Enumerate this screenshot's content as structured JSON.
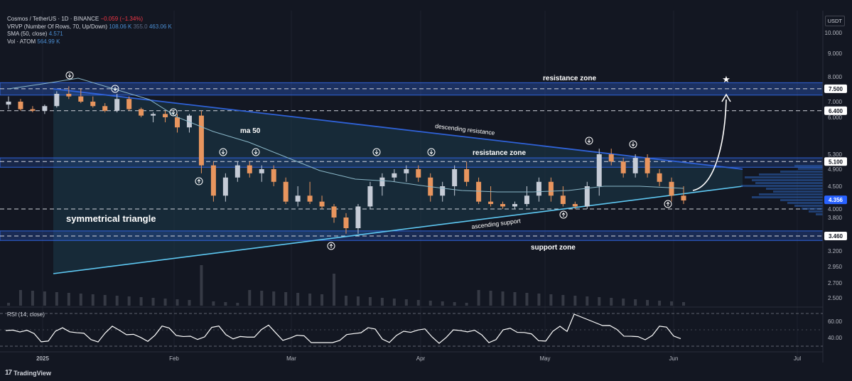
{
  "header": {
    "symbol": "Cosmos / TetherUS · 1D · BINANCE",
    "change": "−0.059 (−1.34%)",
    "vrvp": "VRVP (Number Of Rows, 70, Up/Down)",
    "vrvp_up": "108.06 K",
    "vrvp_mid": "355.0",
    "vrvp_total": "463.06 K",
    "sma": "SMA (50, close)",
    "sma_value": "4.571",
    "vol": "Vol · ATOM",
    "vol_value": "564.99 K"
  },
  "currency": "USDT",
  "rsi_label": "RSI (14, close)",
  "brand": "TradingView",
  "colors": {
    "background": "#131722",
    "up": "#c5cbd6",
    "down": "#e8955e",
    "triangle_line": "#2f62d8",
    "support_line": "#5ec8f2",
    "sma": "#8ab7c8",
    "zone": "#2f62d8"
  },
  "chart_data": {
    "type": "candlestick",
    "x_ticks": [
      "2025",
      "Feb",
      "Mar",
      "Apr",
      "May",
      "Jun",
      "Jul"
    ],
    "y_scale": "log",
    "y_ticks": [
      "10.000",
      "9.000",
      "8.000",
      "7.000",
      "6.000",
      "5.300",
      "4.900",
      "4.500",
      "4.350",
      "4.000",
      "3.800",
      "3.460",
      "3.200",
      "2.950",
      "2.700",
      "2.500"
    ],
    "price_tags": [
      {
        "label": "7.500",
        "value": 7.5
      },
      {
        "label": "6.400",
        "value": 6.4
      },
      {
        "label": "5.100",
        "value": 5.1
      },
      {
        "label": "4.356",
        "value": 4.356,
        "highlight": true
      },
      {
        "label": "3.460",
        "value": 3.46
      }
    ],
    "rsi_ticks": [
      "60.00",
      "40.00"
    ],
    "annotations": {
      "resistance_top": "resistance zone",
      "resistance_mid": "resistance zone",
      "support": "support zone",
      "ma": "ma 50",
      "descending": "descending resistance",
      "ascending": "ascending support",
      "pattern": "symmetrical triangle"
    },
    "series": [
      {
        "name": "OHLC",
        "values": [
          [
            6.8,
            7.2,
            6.5,
            7.0
          ],
          [
            7.0,
            7.1,
            6.4,
            6.5
          ],
          [
            6.5,
            6.7,
            6.3,
            6.4
          ],
          [
            6.4,
            6.8,
            6.2,
            6.7
          ],
          [
            6.7,
            7.4,
            6.6,
            7.3
          ],
          [
            7.3,
            7.6,
            7.1,
            7.2
          ],
          [
            7.2,
            7.5,
            6.9,
            7.0
          ],
          [
            7.0,
            7.2,
            6.6,
            6.7
          ],
          [
            6.7,
            6.9,
            6.3,
            6.4
          ],
          [
            6.4,
            7.3,
            6.3,
            7.1
          ],
          [
            7.1,
            7.2,
            6.4,
            6.5
          ],
          [
            6.5,
            6.6,
            6.0,
            6.1
          ],
          [
            6.1,
            6.3,
            5.9,
            6.2
          ],
          [
            6.2,
            6.4,
            5.9,
            6.0
          ],
          [
            6.0,
            6.2,
            5.7,
            5.8
          ],
          [
            5.8,
            6.2,
            5.7,
            6.1
          ],
          [
            6.1,
            6.4,
            4.8,
            5.0
          ],
          [
            5.0,
            5.1,
            4.3,
            4.4
          ],
          [
            4.4,
            4.8,
            4.3,
            4.7
          ],
          [
            4.7,
            5.1,
            4.6,
            5.0
          ],
          [
            5.0,
            5.1,
            4.7,
            4.8
          ],
          [
            4.8,
            5.0,
            4.6,
            4.9
          ],
          [
            4.9,
            5.0,
            4.5,
            4.6
          ],
          [
            4.6,
            4.7,
            4.2,
            4.3
          ],
          [
            4.3,
            4.5,
            4.1,
            4.4
          ],
          [
            4.4,
            4.6,
            4.2,
            4.3
          ],
          [
            4.3,
            4.4,
            4.0,
            4.1
          ],
          [
            4.1,
            4.2,
            3.7,
            3.8
          ],
          [
            3.8,
            3.9,
            3.5,
            3.6
          ],
          [
            3.6,
            4.2,
            3.5,
            4.1
          ],
          [
            4.1,
            4.6,
            4.0,
            4.5
          ],
          [
            4.5,
            4.8,
            4.4,
            4.7
          ],
          [
            4.7,
            4.9,
            4.6,
            4.8
          ],
          [
            4.8,
            5.0,
            4.6,
            4.9
          ],
          [
            4.9,
            5.0,
            4.6,
            4.7
          ],
          [
            4.7,
            4.8,
            4.3,
            4.4
          ],
          [
            4.4,
            4.6,
            4.3,
            4.5
          ],
          [
            4.5,
            5.0,
            4.4,
            4.9
          ],
          [
            4.9,
            5.1,
            4.5,
            4.6
          ],
          [
            4.6,
            4.7,
            4.2,
            4.3
          ],
          [
            4.3,
            4.5,
            4.1,
            4.2
          ],
          [
            4.2,
            4.3,
            4.0,
            4.1
          ],
          [
            4.1,
            4.3,
            4.0,
            4.2
          ],
          [
            4.2,
            4.5,
            4.1,
            4.4
          ],
          [
            4.4,
            4.7,
            4.3,
            4.6
          ],
          [
            4.6,
            4.7,
            4.3,
            4.4
          ],
          [
            4.4,
            4.5,
            4.1,
            4.2
          ],
          [
            4.2,
            4.3,
            4.0,
            4.1
          ],
          [
            4.1,
            4.6,
            4.0,
            4.5
          ],
          [
            4.5,
            5.4,
            4.4,
            5.3
          ],
          [
            5.3,
            5.4,
            5.0,
            5.1
          ],
          [
            5.1,
            5.2,
            4.7,
            4.8
          ],
          [
            4.8,
            5.3,
            4.7,
            5.2
          ],
          [
            5.2,
            5.3,
            4.7,
            4.8
          ],
          [
            4.8,
            4.9,
            4.5,
            4.6
          ],
          [
            4.6,
            4.7,
            4.3,
            4.4
          ],
          [
            4.4,
            4.5,
            4.2,
            4.35
          ]
        ]
      },
      {
        "name": "SMA (50, close)"
      },
      {
        "name": "RSI (14, close)"
      }
    ]
  }
}
